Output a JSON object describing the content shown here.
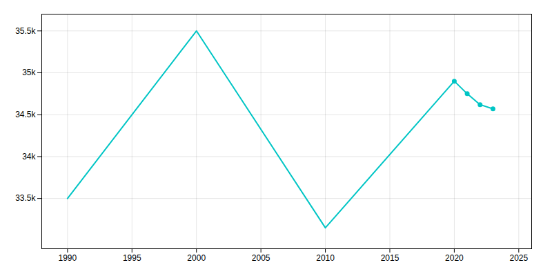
{
  "chart_data": {
    "type": "line",
    "x": [
      1990,
      2000,
      2010,
      2020,
      2021,
      2022,
      2023
    ],
    "values": [
      33500,
      35500,
      33150,
      34900,
      34750,
      34620,
      34570
    ],
    "color": "#00C5C5",
    "marker": "circle",
    "markers_at": [
      2020,
      2021,
      2022,
      2023
    ],
    "xlim": [
      1988,
      2026
    ],
    "xticks": [
      1990,
      1995,
      2000,
      2005,
      2010,
      2015,
      2020,
      2025
    ],
    "ylim": [
      32900,
      35700
    ],
    "yticks": [
      {
        "value": 33500,
        "label": "33.5k"
      },
      {
        "value": 34000,
        "label": "34k"
      },
      {
        "value": 34500,
        "label": "34.5k"
      },
      {
        "value": 35000,
        "label": "35k"
      },
      {
        "value": 35500,
        "label": "35.5k"
      }
    ],
    "grid": true
  }
}
